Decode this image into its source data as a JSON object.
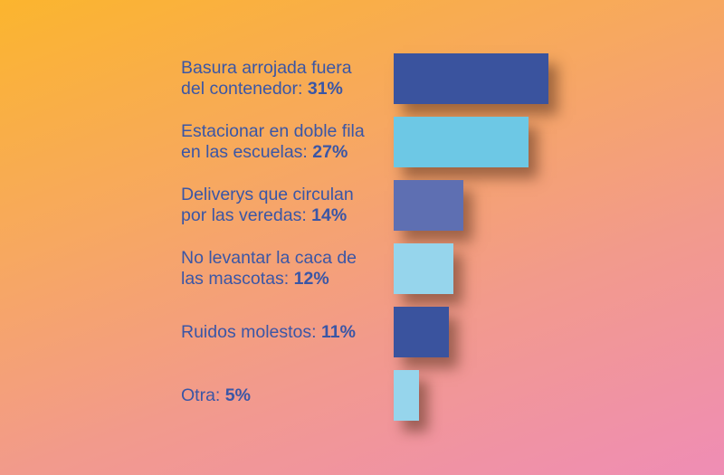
{
  "chart_data": {
    "type": "bar",
    "orientation": "horizontal",
    "title": "",
    "xlabel": "",
    "ylabel": "",
    "grid": false,
    "legend": null,
    "categories": [
      "Basura arrojada fuera del contenedor",
      "Estacionar en doble fila en las escuelas",
      "Deliverys que circulan por las veredas",
      "No levantar la caca de las mascotas",
      "Ruidos molestos",
      "Otra"
    ],
    "values": [
      31,
      27,
      14,
      12,
      11,
      5
    ],
    "unit": "%",
    "xlim": [
      0,
      31
    ]
  },
  "rows": [
    {
      "line1": "Basura arrojada fuera",
      "line2": "del contenedor: ",
      "pct": "31%",
      "value": 31,
      "color": "#3A539E"
    },
    {
      "line1": "Estacionar en doble fila",
      "line2": "en las escuelas: ",
      "pct": "27%",
      "value": 27,
      "color": "#6DC8E5"
    },
    {
      "line1": "Deliverys que circulan",
      "line2": "por las veredas: ",
      "pct": "14%",
      "value": 14,
      "color": "#5E6FB2"
    },
    {
      "line1": "No levantar la caca de",
      "line2": "las mascotas: ",
      "pct": "12%",
      "value": 12,
      "color": "#96D5EC"
    },
    {
      "line1": "",
      "line2": "Ruidos molestos: ",
      "pct": "11%",
      "value": 11,
      "color": "#3A539E"
    },
    {
      "line1": "",
      "line2": "Otra: ",
      "pct": "5%",
      "value": 5,
      "color": "#96D5EC"
    }
  ],
  "colors": {
    "label_text": "#3A56A6",
    "bg_top_left": "#FBB52E",
    "bg_bottom_right": "#EF8DB5"
  }
}
